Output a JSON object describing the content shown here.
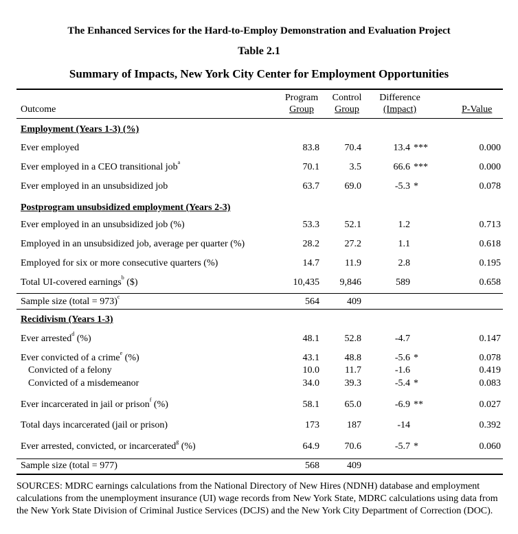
{
  "header": {
    "project_title": "The Enhanced Services for the Hard-to-Employ Demonstration and Evaluation Project",
    "table_number": "Table 2.1",
    "table_title": "Summary of Impacts, New York City Center for Employment Opportunities"
  },
  "columns": {
    "outcome": "Outcome",
    "program_1": "Program",
    "program_2": "Group",
    "control_1": "Control",
    "control_2": "Group",
    "difference_1": "Difference",
    "difference_2": "(Impact)",
    "pvalue": "P-Value"
  },
  "sections": {
    "employment": "Employment (Years 1-3) (%)",
    "postprogram": "Postprogram unsubsidized employment  (Years 2-3)",
    "recidivism": "Recidivism (Years 1-3)"
  },
  "rows": [
    {
      "label": "Ever employed",
      "sup": "",
      "label_suffix": "",
      "program": "83.8",
      "control": "70.4",
      "diff": "13.4",
      "stars": "***",
      "pvalue": "0.000"
    },
    {
      "label": "Ever employed in a CEO transitional job",
      "sup": "a",
      "label_suffix": "",
      "program": "70.1",
      "control": "3.5",
      "diff": "66.6",
      "stars": "***",
      "pvalue": "0.000"
    },
    {
      "label": "Ever employed in an unsubsidized job",
      "sup": "",
      "label_suffix": "",
      "program": "63.7",
      "control": "69.0",
      "diff": "-5.3",
      "stars": "*",
      "pvalue": "0.078"
    },
    {
      "label": "Ever employed in an unsubsidized job (%)",
      "sup": "",
      "label_suffix": "",
      "program": "53.3",
      "control": "52.1",
      "diff": "1.2",
      "stars": "",
      "pvalue": "0.713"
    },
    {
      "label": "Employed in an unsubsidized job, average per quarter (%)",
      "sup": "",
      "label_suffix": "",
      "program": "28.2",
      "control": "27.2",
      "diff": "1.1",
      "stars": "",
      "pvalue": "0.618"
    },
    {
      "label": "Employed for six or more consecutive quarters (%)",
      "sup": "",
      "label_suffix": "",
      "program": "14.7",
      "control": "11.9",
      "diff": "2.8",
      "stars": "",
      "pvalue": "0.195"
    },
    {
      "label": "Total UI-covered earnings",
      "sup": "b",
      "label_suffix": " ($)",
      "program": "10,435",
      "control": "9,846",
      "diff": "589",
      "stars": "",
      "pvalue": "0.658"
    },
    {
      "label": "Sample size (total = 973)",
      "sup": "c",
      "label_suffix": "",
      "program": "564",
      "control": "409",
      "diff": "",
      "stars": "",
      "pvalue": ""
    },
    {
      "label": "Ever arrested",
      "sup": "d",
      "label_suffix": " (%)",
      "program": "48.1",
      "control": "52.8",
      "diff": "-4.7",
      "stars": "",
      "pvalue": "0.147"
    },
    {
      "label": "Ever convicted of a crime",
      "sup": "e",
      "label_suffix": " (%)",
      "program": "43.1",
      "control": "48.8",
      "diff": "-5.6",
      "stars": "*",
      "pvalue": "0.078"
    },
    {
      "label": "Convicted of a felony",
      "sup": "",
      "label_suffix": "",
      "program": "10.0",
      "control": "11.7",
      "diff": "-1.6",
      "stars": "",
      "pvalue": "0.419"
    },
    {
      "label": "Convicted of a misdemeanor",
      "sup": "",
      "label_suffix": "",
      "program": "34.0",
      "control": "39.3",
      "diff": "-5.4",
      "stars": "*",
      "pvalue": "0.083"
    },
    {
      "label": "Ever incarcerated in jail or prison",
      "sup": "f",
      "label_suffix": " (%)",
      "program": "58.1",
      "control": "65.0",
      "diff": "-6.9",
      "stars": "**",
      "pvalue": "0.027"
    },
    {
      "label": "Total days incarcerated (jail or prison)",
      "sup": "",
      "label_suffix": "",
      "program": "173",
      "control": "187",
      "diff": "-14",
      "stars": "",
      "pvalue": "0.392"
    },
    {
      "label": "Ever arrested, convicted, or incarcerated",
      "sup": "g",
      "label_suffix": " (%)",
      "program": "64.9",
      "control": "70.6",
      "diff": "-5.7",
      "stars": "*",
      "pvalue": "0.060"
    },
    {
      "label": "Sample size (total = 977)",
      "sup": "",
      "label_suffix": "",
      "program": "568",
      "control": "409",
      "diff": "",
      "stars": "",
      "pvalue": ""
    }
  ],
  "sources": "SOURCES: MDRC earnings calculations from the National Directory of New Hires (NDNH) database and employment calculations from the unemployment insurance (UI) wage records from New York State, MDRC calculations using data from the New York State Division of Criminal Justice Services (DCJS) and the New York City Department of Correction (DOC)."
}
